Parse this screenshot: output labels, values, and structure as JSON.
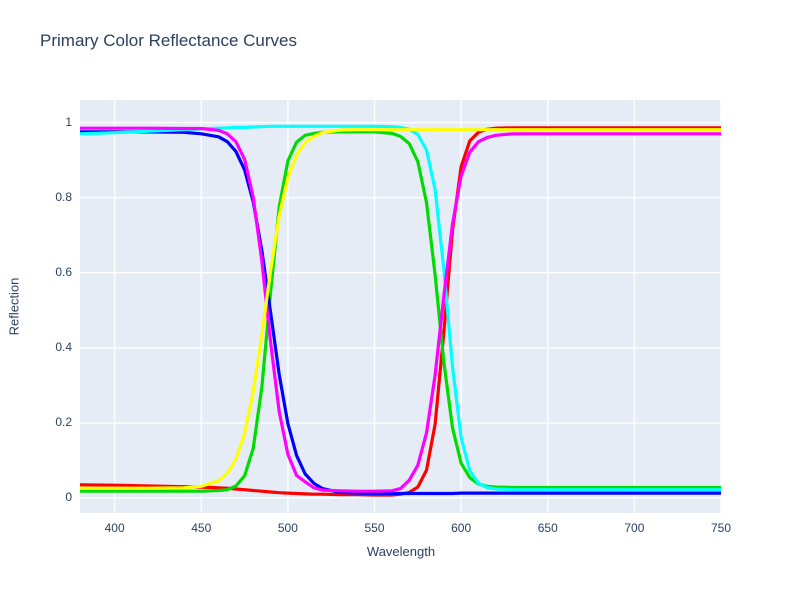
{
  "title": "Primary Color Reflectance Curves",
  "chart_data": {
    "type": "line",
    "title": "Primary Color Reflectance Curves",
    "xlabel": "Wavelength",
    "ylabel": "Reflection",
    "xlim": [
      380,
      750
    ],
    "ylim": [
      -0.04,
      1.06
    ],
    "grid": true,
    "legend_position": "none",
    "plot_bg": "#e5ecf6",
    "grid_color": "#ffffff",
    "text_color": "#2a3f5f",
    "x_ticks": [
      400,
      450,
      500,
      550,
      600,
      650,
      700,
      750
    ],
    "y_ticks": [
      0,
      0.2,
      0.4,
      0.6,
      0.8,
      1
    ],
    "x": [
      380,
      400,
      420,
      440,
      450,
      460,
      465,
      470,
      475,
      480,
      485,
      490,
      495,
      500,
      505,
      510,
      515,
      520,
      530,
      540,
      550,
      560,
      565,
      570,
      575,
      580,
      585,
      590,
      595,
      600,
      605,
      610,
      615,
      620,
      630,
      640,
      660,
      680,
      700,
      720,
      750
    ],
    "series": [
      {
        "name": "red",
        "color": "#ff0000",
        "values": [
          0.035,
          0.034,
          0.032,
          0.03,
          0.029,
          0.027,
          0.026,
          0.024,
          0.022,
          0.02,
          0.018,
          0.016,
          0.014,
          0.013,
          0.012,
          0.011,
          0.01,
          0.01,
          0.009,
          0.009,
          0.008,
          0.008,
          0.01,
          0.015,
          0.029,
          0.074,
          0.196,
          0.44,
          0.713,
          0.882,
          0.951,
          0.974,
          0.982,
          0.985,
          0.986,
          0.986,
          0.986,
          0.986,
          0.986,
          0.986,
          0.986
        ]
      },
      {
        "name": "green",
        "color": "#00dc00",
        "values": [
          0.018,
          0.018,
          0.018,
          0.018,
          0.018,
          0.02,
          0.022,
          0.032,
          0.059,
          0.132,
          0.296,
          0.549,
          0.775,
          0.898,
          0.948,
          0.966,
          0.971,
          0.974,
          0.975,
          0.975,
          0.975,
          0.971,
          0.963,
          0.944,
          0.896,
          0.787,
          0.595,
          0.363,
          0.187,
          0.093,
          0.054,
          0.037,
          0.031,
          0.029,
          0.028,
          0.028,
          0.028,
          0.028,
          0.028,
          0.028,
          0.028
        ]
      },
      {
        "name": "blue",
        "color": "#0000ff",
        "values": [
          0.975,
          0.975,
          0.975,
          0.974,
          0.97,
          0.962,
          0.949,
          0.923,
          0.874,
          0.789,
          0.658,
          0.494,
          0.329,
          0.198,
          0.113,
          0.064,
          0.039,
          0.025,
          0.015,
          0.013,
          0.012,
          0.012,
          0.012,
          0.012,
          0.012,
          0.012,
          0.012,
          0.012,
          0.012,
          0.013,
          0.013,
          0.013,
          0.013,
          0.013,
          0.013,
          0.013,
          0.013,
          0.013,
          0.013,
          0.013,
          0.013
        ]
      },
      {
        "name": "cyan",
        "color": "#00ffff",
        "values": [
          0.97,
          0.973,
          0.977,
          0.981,
          0.983,
          0.985,
          0.986,
          0.987,
          0.987,
          0.988,
          0.989,
          0.99,
          0.99,
          0.99,
          0.99,
          0.99,
          0.99,
          0.99,
          0.99,
          0.99,
          0.99,
          0.989,
          0.987,
          0.982,
          0.968,
          0.927,
          0.822,
          0.611,
          0.35,
          0.161,
          0.073,
          0.039,
          0.028,
          0.024,
          0.022,
          0.022,
          0.022,
          0.022,
          0.022,
          0.022,
          0.022
        ]
      },
      {
        "name": "magenta",
        "color": "#ff00ff",
        "values": [
          0.985,
          0.985,
          0.985,
          0.984,
          0.984,
          0.979,
          0.97,
          0.949,
          0.902,
          0.801,
          0.63,
          0.415,
          0.23,
          0.116,
          0.06,
          0.043,
          0.027,
          0.021,
          0.019,
          0.018,
          0.018,
          0.019,
          0.025,
          0.047,
          0.087,
          0.173,
          0.327,
          0.537,
          0.73,
          0.857,
          0.921,
          0.949,
          0.96,
          0.966,
          0.97,
          0.97,
          0.97,
          0.97,
          0.97,
          0.97,
          0.97
        ]
      },
      {
        "name": "yellow",
        "color": "#ffff00",
        "values": [
          0.026,
          0.026,
          0.026,
          0.027,
          0.031,
          0.046,
          0.066,
          0.103,
          0.172,
          0.283,
          0.435,
          0.605,
          0.751,
          0.853,
          0.914,
          0.947,
          0.963,
          0.973,
          0.98,
          0.981,
          0.981,
          0.981,
          0.981,
          0.981,
          0.981,
          0.981,
          0.981,
          0.981,
          0.981,
          0.981,
          0.981,
          0.981,
          0.981,
          0.981,
          0.981,
          0.981,
          0.981,
          0.981,
          0.981,
          0.981,
          0.981
        ]
      }
    ]
  }
}
